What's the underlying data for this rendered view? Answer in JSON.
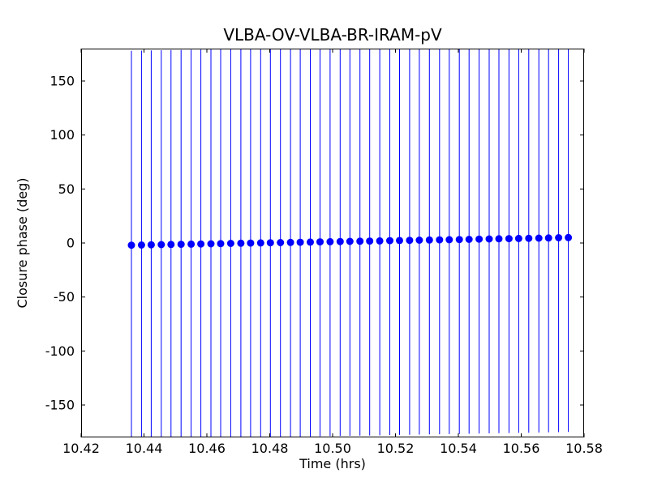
{
  "chart_data": {
    "type": "scatter",
    "title": "VLBA-OV-VLBA-BR-IRAM-pV",
    "xlabel": "Time (hrs)",
    "ylabel": "Closure phase (deg)",
    "xlim": [
      10.42,
      10.58
    ],
    "ylim": [
      -180,
      180
    ],
    "grid": false,
    "legend": "none",
    "marker_color": "#0000ff",
    "errorbar_color": "#0000ff",
    "axes_color": "#000000",
    "background_color": "#ffffff",
    "x_ticks": [
      10.42,
      10.44,
      10.46,
      10.48,
      10.5,
      10.52,
      10.54,
      10.56,
      10.58
    ],
    "x_tick_labels": [
      "10.42",
      "10.44",
      "10.46",
      "10.48",
      "10.50",
      "10.52",
      "10.54",
      "10.56",
      "10.58"
    ],
    "y_ticks": [
      -150,
      -100,
      -50,
      0,
      50,
      100,
      150
    ],
    "y_tick_labels": [
      "-150",
      "-100",
      "-50",
      "0",
      "50",
      "100",
      "150"
    ],
    "yerr": 180,
    "x": [
      10.436,
      10.4392,
      10.4423,
      10.4455,
      10.4486,
      10.4518,
      10.455,
      10.4581,
      10.4613,
      10.4644,
      10.4676,
      10.4708,
      10.4739,
      10.4771,
      10.4802,
      10.4834,
      10.4866,
      10.4897,
      10.4929,
      10.496,
      10.4992,
      10.5024,
      10.5055,
      10.5087,
      10.5118,
      10.515,
      10.5182,
      10.5213,
      10.5245,
      10.5276,
      10.5308,
      10.534,
      10.5371,
      10.5403,
      10.5434,
      10.5466,
      10.5498,
      10.5529,
      10.5561,
      10.5592,
      10.5624,
      10.5656,
      10.5687,
      10.5719,
      10.575
    ],
    "y": [
      -2.0,
      -1.84,
      -1.68,
      -1.52,
      -1.36,
      -1.2,
      -1.05,
      -0.89,
      -0.73,
      -0.57,
      -0.41,
      -0.25,
      -0.09,
      0.07,
      0.23,
      0.39,
      0.55,
      0.7,
      0.86,
      1.02,
      1.18,
      1.34,
      1.5,
      1.66,
      1.82,
      1.98,
      2.14,
      2.3,
      2.45,
      2.61,
      2.77,
      2.93,
      3.09,
      3.25,
      3.41,
      3.57,
      3.73,
      3.89,
      4.05,
      4.2,
      4.36,
      4.52,
      4.68,
      4.84,
      5.0
    ]
  }
}
